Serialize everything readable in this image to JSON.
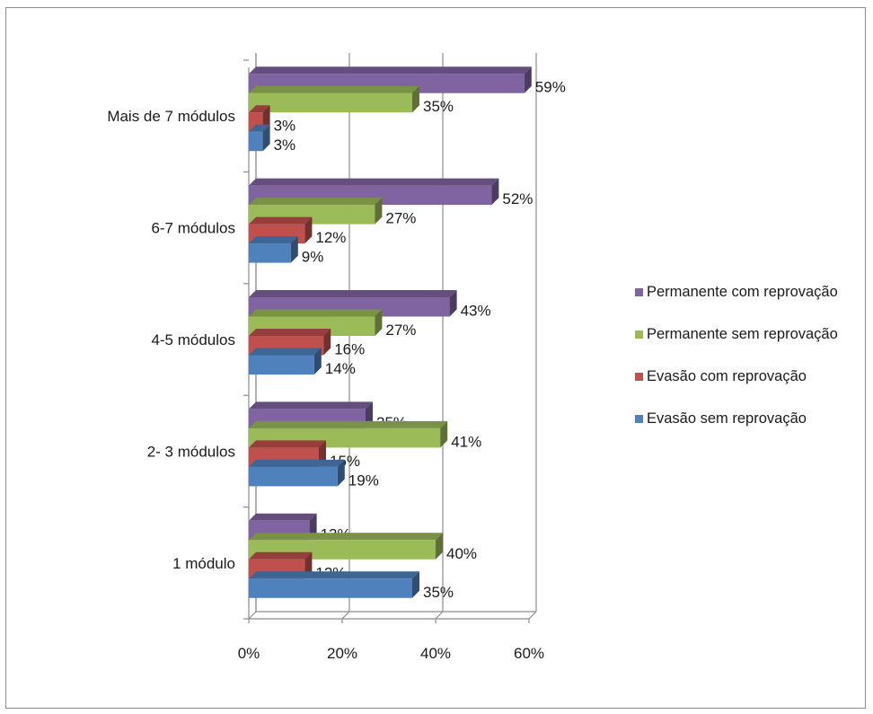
{
  "chart_data": {
    "type": "bar",
    "orientation": "horizontal",
    "three_d": true,
    "categories": [
      "1 módulo",
      "2- 3 módulos",
      "4-5 módulos",
      "6-7  módulos",
      "Mais de 7 módulos"
    ],
    "series": [
      {
        "name": "Evasão sem reprovação",
        "values": [
          35,
          19,
          14,
          9,
          3
        ],
        "color": "#4f81bd"
      },
      {
        "name": "Evasão com reprovação",
        "values": [
          12,
          15,
          16,
          12,
          3
        ],
        "color": "#c0504d"
      },
      {
        "name": "Permanente sem reprovação",
        "values": [
          40,
          41,
          27,
          27,
          35
        ],
        "color": "#9bbb59"
      },
      {
        "name": "Permanente com reprovação",
        "values": [
          13,
          25,
          43,
          52,
          59
        ],
        "color": "#8064a2"
      }
    ],
    "data_labels": true,
    "value_format": "percent",
    "xlim": [
      0,
      60
    ],
    "xticks": [
      "0%",
      "20%",
      "40%",
      "60%"
    ],
    "grid": true,
    "legend": "right",
    "legend_order": [
      "Permanente com reprovação",
      "Permanente sem reprovação",
      "Evasão com reprovação",
      "Evasão sem reprovação"
    ]
  }
}
